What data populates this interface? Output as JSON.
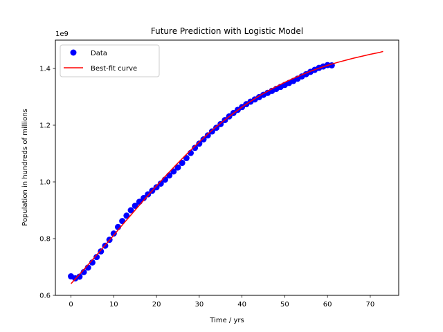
{
  "chart_data": {
    "type": "scatter",
    "title": "Future Prediction with Logistic Model",
    "xlabel": "Time / yrs",
    "ylabel": "Population in hundreds of millions",
    "y_offset_label": "1e9",
    "xlim": [
      -3.65,
      76.65
    ],
    "ylim": [
      0.6,
      1.5
    ],
    "xticks": [
      0,
      10,
      20,
      30,
      40,
      50,
      60,
      70
    ],
    "xtick_labels": [
      "0",
      "10",
      "20",
      "30",
      "40",
      "50",
      "60",
      "70"
    ],
    "yticks": [
      0.6,
      0.8,
      1.0,
      1.2,
      1.4
    ],
    "ytick_labels": [
      "0.6",
      "0.8",
      "1.0",
      "1.2",
      "1.4"
    ],
    "grid": false,
    "legend_position": "top-left",
    "series": [
      {
        "name": "Data",
        "kind": "scatter",
        "color": "#0000ff",
        "x": [
          0,
          1,
          2,
          3,
          4,
          5,
          6,
          7,
          8,
          9,
          10,
          11,
          12,
          13,
          14,
          15,
          16,
          17,
          18,
          19,
          20,
          21,
          22,
          23,
          24,
          25,
          26,
          27,
          28,
          29,
          30,
          31,
          32,
          33,
          34,
          35,
          36,
          37,
          38,
          39,
          40,
          41,
          42,
          43,
          44,
          45,
          46,
          47,
          48,
          49,
          50,
          51,
          52,
          53,
          54,
          55,
          56,
          57,
          58,
          59,
          60,
          61
        ],
        "y": [
          0.667,
          0.66,
          0.666,
          0.682,
          0.698,
          0.716,
          0.735,
          0.755,
          0.775,
          0.796,
          0.818,
          0.841,
          0.862,
          0.881,
          0.9,
          0.916,
          0.93,
          0.943,
          0.956,
          0.969,
          0.981,
          0.994,
          1.008,
          1.023,
          1.037,
          1.051,
          1.067,
          1.084,
          1.102,
          1.12,
          1.135,
          1.15,
          1.164,
          1.178,
          1.191,
          1.204,
          1.218,
          1.231,
          1.243,
          1.254,
          1.264,
          1.274,
          1.283,
          1.291,
          1.299,
          1.307,
          1.314,
          1.321,
          1.328,
          1.335,
          1.342,
          1.349,
          1.356,
          1.364,
          1.372,
          1.38,
          1.388,
          1.395,
          1.402,
          1.407,
          1.412,
          1.411
        ]
      },
      {
        "name": "Best-fit curve",
        "kind": "line",
        "color": "#ff0000",
        "x": [
          0,
          2,
          4,
          6,
          8,
          10,
          12,
          14,
          16,
          18,
          20,
          22,
          24,
          26,
          28,
          30,
          32,
          34,
          36,
          38,
          40,
          42,
          44,
          46,
          48,
          50,
          52,
          54,
          56,
          58,
          60,
          62,
          64,
          66,
          68,
          70,
          72,
          73
        ],
        "y": [
          0.641,
          0.674,
          0.708,
          0.742,
          0.777,
          0.812,
          0.848,
          0.883,
          0.918,
          0.952,
          0.986,
          1.019,
          1.051,
          1.082,
          1.112,
          1.141,
          1.169,
          1.195,
          1.219,
          1.242,
          1.264,
          1.284,
          1.303,
          1.32,
          1.336,
          1.351,
          1.365,
          1.378,
          1.39,
          1.401,
          1.411,
          1.42,
          1.428,
          1.436,
          1.443,
          1.45,
          1.456,
          1.46
        ]
      }
    ]
  }
}
